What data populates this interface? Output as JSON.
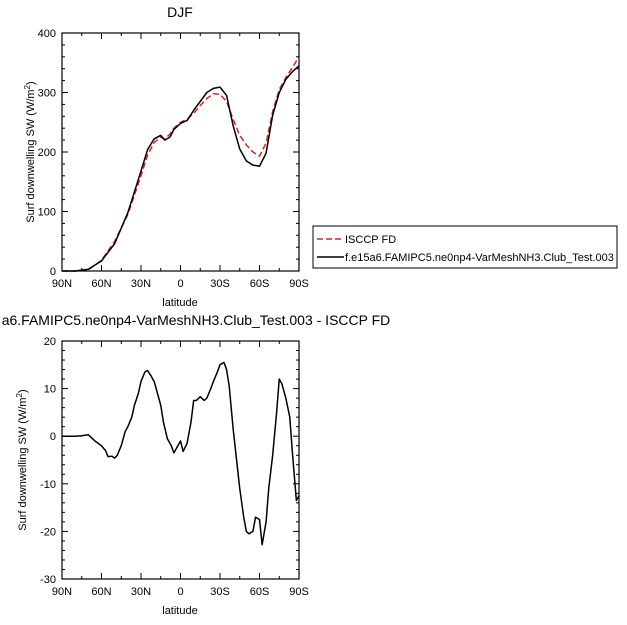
{
  "chart_data": [
    {
      "type": "line",
      "title": "DJF",
      "xlabel": "latitude",
      "ylabel": "Surf downwelling SW (W/m²)",
      "ylabel_main": "Surf downwelling SW (W/m",
      "ylabel_sup": "2",
      "ylabel_end": ")",
      "xlim": [
        90,
        -90
      ],
      "ylim": [
        0,
        400
      ],
      "x_ticks": [
        90,
        60,
        30,
        0,
        -30,
        -60,
        -90
      ],
      "x_tick_labels": [
        "90N",
        "60N",
        "30N",
        "0",
        "30S",
        "60S",
        "90S"
      ],
      "y_ticks": [
        0,
        100,
        200,
        300,
        400
      ],
      "y_tick_labels": [
        "0",
        "100",
        "200",
        "300",
        "400"
      ],
      "grid": false,
      "legend_placement": "right",
      "series": [
        {
          "name": "ISCCP FD",
          "color": "#dd2222",
          "dash": "dashed",
          "x": [
            90,
            80,
            70,
            60,
            50,
            40,
            30,
            25,
            20,
            15,
            12,
            8,
            5,
            0,
            -5,
            -10,
            -15,
            -20,
            -25,
            -30,
            -35,
            -40,
            -45,
            -50,
            -55,
            -60,
            -65,
            -70,
            -75,
            -80,
            -85,
            -90
          ],
          "y": [
            0,
            0,
            2,
            18,
            50,
            95,
            160,
            195,
            216,
            225,
            222,
            230,
            240,
            250,
            255,
            265,
            278,
            290,
            298,
            297,
            285,
            255,
            228,
            212,
            200,
            193,
            215,
            268,
            305,
            325,
            342,
            360
          ]
        },
        {
          "name": "f.e15a6.FAMIPC5.ne0np4-VarMeshNH3.Club_Test.003",
          "color": "#000000",
          "dash": "solid",
          "x": [
            90,
            80,
            70,
            60,
            50,
            40,
            30,
            25,
            20,
            15,
            12,
            8,
            5,
            0,
            -5,
            -10,
            -15,
            -20,
            -25,
            -30,
            -35,
            -40,
            -45,
            -50,
            -55,
            -60,
            -65,
            -70,
            -75,
            -80,
            -85,
            -90
          ],
          "y": [
            0,
            0,
            3,
            17,
            46,
            98,
            168,
            204,
            222,
            228,
            220,
            225,
            238,
            248,
            253,
            270,
            285,
            300,
            307,
            309,
            295,
            244,
            205,
            185,
            178,
            176,
            198,
            262,
            300,
            322,
            335,
            345
          ]
        }
      ]
    },
    {
      "type": "line",
      "title": "a6.FAMIPC5.ne0np4-VarMeshNH3.Club_Test.003 - ISCCP FD",
      "xlabel": "latitude",
      "ylabel": "Surf downwelling SW (W/m²)",
      "ylabel_main": "Surf downwelling SW (W/m",
      "ylabel_sup": "2",
      "ylabel_end": ")",
      "xlim": [
        90,
        -90
      ],
      "ylim": [
        -30,
        20
      ],
      "x_ticks": [
        90,
        60,
        30,
        0,
        -30,
        -60,
        -90
      ],
      "x_tick_labels": [
        "90N",
        "60N",
        "30N",
        "0",
        "30S",
        "60S",
        "90S"
      ],
      "y_ticks": [
        -30,
        -20,
        -10,
        0,
        10,
        20
      ],
      "y_tick_labels": [
        "-30",
        "-20",
        "-10",
        "0",
        "10",
        "20"
      ],
      "grid": false,
      "series": [
        {
          "color": "#000000",
          "dash": "solid",
          "x": [
            90,
            80,
            75,
            70,
            65,
            60,
            57,
            55,
            52,
            50,
            48,
            45,
            42,
            40,
            37,
            35,
            32,
            30,
            27,
            25,
            22,
            20,
            17,
            15,
            13,
            10,
            7,
            5,
            3,
            0,
            -2,
            -5,
            -8,
            -10,
            -12,
            -15,
            -18,
            -20,
            -23,
            -25,
            -28,
            -30,
            -33,
            -35,
            -37,
            -40,
            -43,
            -45,
            -48,
            -50,
            -52,
            -55,
            -57,
            -60,
            -62,
            -65,
            -67,
            -70,
            -73,
            -75,
            -77,
            -80,
            -83,
            -85,
            -88,
            -90
          ],
          "y": [
            0,
            0,
            0.1,
            0.3,
            -1,
            -2,
            -3,
            -4.3,
            -4.2,
            -4.6,
            -4,
            -2,
            1,
            2,
            4,
            6.5,
            9,
            11.5,
            13.5,
            13.8,
            12.5,
            11.5,
            8.5,
            6.5,
            3,
            -0.5,
            -2,
            -3.5,
            -2.5,
            -1,
            -3.2,
            -1.5,
            3,
            7.5,
            7.5,
            8.3,
            7.5,
            8,
            10,
            11.5,
            13.5,
            15,
            15.5,
            14,
            10.5,
            1.5,
            -6,
            -11,
            -17,
            -20,
            -20.5,
            -20,
            -17,
            -17.5,
            -22.8,
            -18,
            -11,
            -4,
            5,
            12,
            11,
            8,
            4,
            -3.5,
            -13.5,
            -12.5
          ]
        }
      ]
    }
  ]
}
